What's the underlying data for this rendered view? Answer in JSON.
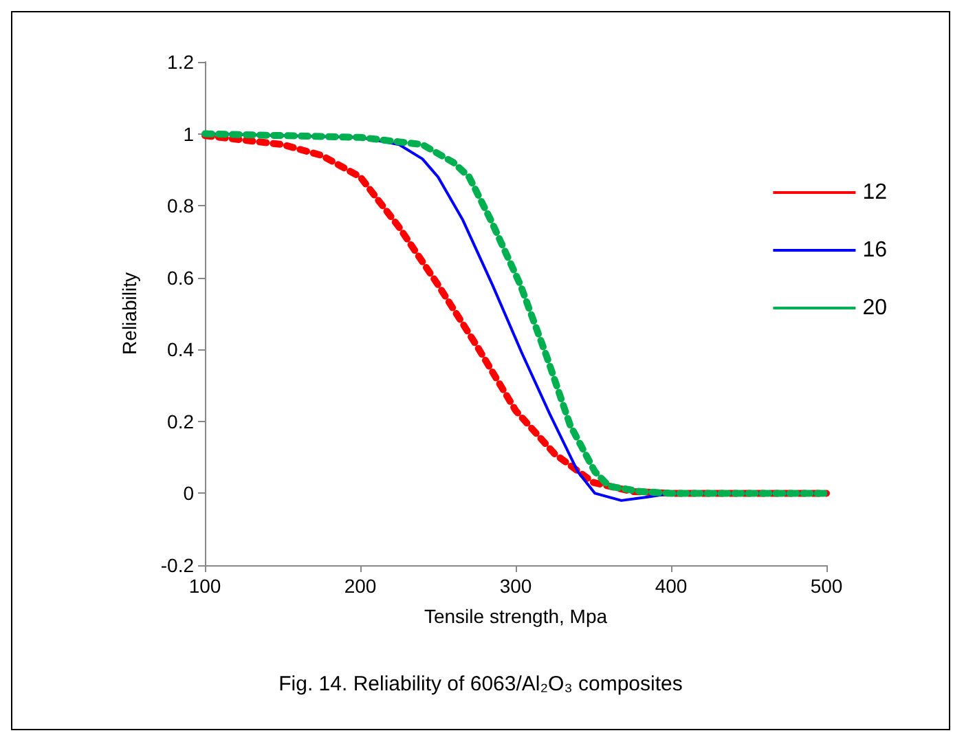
{
  "chart_data": {
    "type": "line",
    "xlabel": "Tensile strength, Mpa",
    "ylabel": "Reliability",
    "annotations": [
      "Fig. 14. Reliability of 6063/Al₂O₃ composites"
    ],
    "xlim": [
      100,
      500
    ],
    "xticks": [
      100,
      200,
      300,
      400,
      500
    ],
    "ylim": [
      -0.2,
      1.2
    ],
    "yticks": [
      -0.2,
      0,
      0.2,
      0.4,
      0.6,
      0.8,
      1,
      1.2
    ],
    "grid": false,
    "legend": "right",
    "marker": "none",
    "series": [
      {
        "name": "12",
        "color": "#ff0000",
        "line_style": "dotted",
        "x": [
          100,
          150,
          175,
          200,
          225,
          250,
          275,
          300,
          325,
          350,
          375,
          400,
          450,
          500
        ],
        "values": [
          0.995,
          0.97,
          0.94,
          0.88,
          0.74,
          0.58,
          0.41,
          0.23,
          0.11,
          0.03,
          0.005,
          0,
          0,
          0
        ]
      },
      {
        "name": "16",
        "color": "#0000ff",
        "line_style": "solid",
        "x": [
          100,
          200,
          225,
          240,
          250,
          266,
          285,
          304,
          322,
          340,
          351,
          368,
          385,
          400,
          450,
          500
        ],
        "values": [
          1,
          0.99,
          0.97,
          0.93,
          0.88,
          0.76,
          0.58,
          0.39,
          0.22,
          0.06,
          0,
          -0.02,
          -0.01,
          0,
          0,
          0
        ]
      },
      {
        "name": "20",
        "color": "#00b050",
        "line_style": "dotted",
        "x": [
          100,
          200,
          240,
          260,
          270,
          284,
          303,
          320,
          335,
          351,
          360,
          380,
          400,
          450,
          500
        ],
        "values": [
          1,
          0.99,
          0.97,
          0.92,
          0.88,
          0.76,
          0.58,
          0.38,
          0.19,
          0.06,
          0.02,
          0.005,
          0,
          0,
          0
        ]
      }
    ]
  }
}
